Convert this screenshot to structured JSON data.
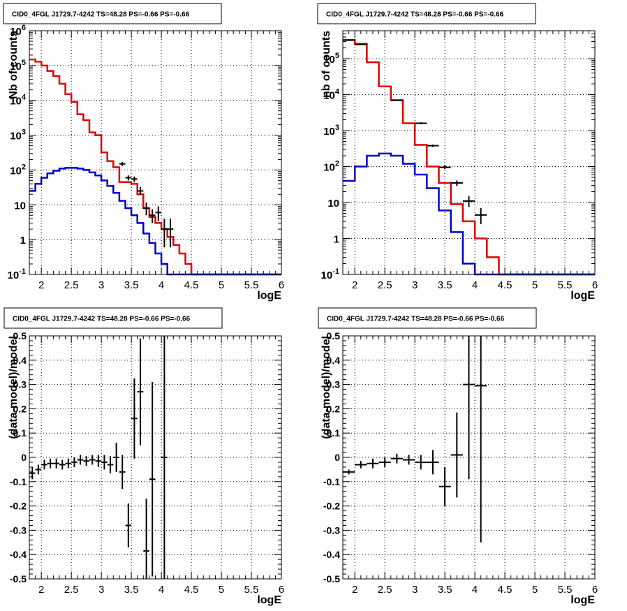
{
  "chart_data": [
    {
      "type": "line",
      "title": "CID0_4FGL J1729.7-4242 TS=48.28 PS=-0.66 PS=-0.66",
      "xlabel": "logE",
      "ylabel": "Nb of counts",
      "ylog": true,
      "xlim": [
        1.8,
        6.0
      ],
      "ylim": [
        0.1,
        1000000
      ],
      "xticks": [
        "2",
        "2.5",
        "3",
        "3.5",
        "4",
        "4.5",
        "5",
        "5.5",
        "6"
      ],
      "yticks": [
        {
          "v": 0.1,
          "label": "10",
          "exp": "-1"
        },
        {
          "v": 1,
          "label": "1"
        },
        {
          "v": 10,
          "label": "10"
        },
        {
          "v": 100,
          "label": "10",
          "exp": "2"
        },
        {
          "v": 1000,
          "label": "10",
          "exp": "3"
        },
        {
          "v": 10000,
          "label": "10",
          "exp": "4"
        },
        {
          "v": 100000,
          "label": "10",
          "exp": "5"
        },
        {
          "v": 1000000,
          "label": "10",
          "exp": "6"
        }
      ],
      "grid": true,
      "bin_edges": [
        1.8,
        1.9,
        2.0,
        2.1,
        2.2,
        2.3,
        2.4,
        2.5,
        2.6,
        2.7,
        2.8,
        2.9,
        3.0,
        3.1,
        3.2,
        3.3,
        3.4,
        3.5,
        3.6,
        3.7,
        3.8,
        3.9,
        4.0,
        4.1,
        4.2,
        4.3,
        4.4,
        4.5,
        4.6,
        4.7,
        4.8,
        4.9,
        5.0,
        5.1,
        5.2,
        5.3,
        5.4,
        5.5,
        5.6,
        5.7,
        5.8,
        5.9,
        6.0
      ],
      "series": [
        {
          "role": "total model",
          "color": "#e00000",
          "values": [
            150000,
            130000,
            100000,
            70000,
            50000,
            30000,
            15000,
            9000,
            4000,
            2700,
            1200,
            1000,
            320,
            180,
            120,
            45,
            45,
            40,
            20,
            8,
            4.5,
            3,
            2,
            1.2,
            0.7,
            0.4,
            0.2,
            0.1,
            0.08,
            0.08,
            0.08,
            0.08,
            0.08,
            0.08,
            0.08,
            0.08,
            0.08,
            0.08,
            0.08,
            0.08,
            0.08,
            0.08
          ]
        },
        {
          "role": "source model",
          "color": "#0000cc",
          "values": [
            25,
            40,
            60,
            80,
            95,
            110,
            115,
            115,
            110,
            100,
            85,
            70,
            50,
            35,
            22,
            13,
            8,
            5,
            3,
            1.5,
            0.8,
            0.4,
            0.2,
            0.1,
            0.08,
            0.08,
            0.08,
            0.08,
            0.08,
            0.08,
            0.08,
            0.08,
            0.08,
            0.08,
            0.08,
            0.08,
            0.08,
            0.08,
            0.08,
            0.08,
            0.08,
            0.08
          ]
        }
      ],
      "data_points": [
        {
          "x": 3.35,
          "y": 150,
          "ylo": 130,
          "yhi": 170
        },
        {
          "x": 3.45,
          "y": 60,
          "ylo": 50,
          "yhi": 70
        },
        {
          "x": 3.55,
          "y": 55,
          "ylo": 45,
          "yhi": 65
        },
        {
          "x": 3.65,
          "y": 25,
          "ylo": 19,
          "yhi": 32
        },
        {
          "x": 3.75,
          "y": 8,
          "ylo": 5,
          "yhi": 11.5
        },
        {
          "x": 3.85,
          "y": 5,
          "ylo": 3,
          "yhi": 7.5
        },
        {
          "x": 3.95,
          "y": 6,
          "ylo": 3.5,
          "yhi": 9
        },
        {
          "x": 4.05,
          "y": 2,
          "ylo": 0.6,
          "yhi": 4
        },
        {
          "x": 4.15,
          "y": 2,
          "ylo": 0.6,
          "yhi": 4
        }
      ]
    },
    {
      "type": "line",
      "title": "CID0_4FGL J1729.7-4242 TS=48.28 PS=-0.66 PS=-0.66",
      "xlabel": "logE",
      "ylabel": "nb of counts",
      "ylog": true,
      "xlim": [
        1.8,
        6.0
      ],
      "ylim": [
        0.1,
        600000
      ],
      "xticks": [
        "2",
        "2.5",
        "3",
        "3.5",
        "4",
        "4.5",
        "5",
        "5.5",
        "6"
      ],
      "yticks": [
        {
          "v": 0.1,
          "label": "10",
          "exp": "-1"
        },
        {
          "v": 1,
          "label": "1"
        },
        {
          "v": 10,
          "label": "10"
        },
        {
          "v": 100,
          "label": "10",
          "exp": "2"
        },
        {
          "v": 1000,
          "label": "10",
          "exp": "3"
        },
        {
          "v": 10000,
          "label": "10",
          "exp": "4"
        },
        {
          "v": 100000,
          "label": "10",
          "exp": "5"
        }
      ],
      "grid": true,
      "bin_edges": [
        1.8,
        2.0,
        2.2,
        2.4,
        2.6,
        2.8,
        3.0,
        3.2,
        3.4,
        3.6,
        3.8,
        4.0,
        4.2,
        4.4,
        4.6,
        4.8,
        5.0,
        5.2,
        5.4,
        5.6,
        5.8,
        6.0
      ],
      "series": [
        {
          "role": "total model",
          "color": "#e00000",
          "values": [
            330000,
            260000,
            80000,
            17000,
            7000,
            1600,
            400,
            100,
            35,
            9,
            3,
            1,
            0.3,
            0.1,
            0.08,
            0.08,
            0.08,
            0.08,
            0.08,
            0.08,
            0.08
          ]
        },
        {
          "role": "source model",
          "color": "#0000cc",
          "values": [
            40,
            100,
            200,
            230,
            200,
            120,
            60,
            25,
            6,
            1.5,
            0.2,
            0.08,
            0.08,
            0.08,
            0.08,
            0.08,
            0.08,
            0.08,
            0.08,
            0.08,
            0.08
          ]
        }
      ],
      "data_points": [
        {
          "x": 1.9,
          "y": 330000,
          "ylo": 320000,
          "yhi": 340000
        },
        {
          "x": 2.1,
          "y": 250000,
          "ylo": 240000,
          "yhi": 260000
        },
        {
          "x": 2.7,
          "y": 7000,
          "ylo": 6700,
          "yhi": 7300
        },
        {
          "x": 3.1,
          "y": 1600,
          "ylo": 1500,
          "yhi": 1700
        },
        {
          "x": 3.3,
          "y": 380,
          "ylo": 350,
          "yhi": 410
        },
        {
          "x": 3.5,
          "y": 95,
          "ylo": 85,
          "yhi": 110
        },
        {
          "x": 3.7,
          "y": 35,
          "ylo": 29,
          "yhi": 41
        },
        {
          "x": 3.9,
          "y": 11,
          "ylo": 7.5,
          "yhi": 15
        },
        {
          "x": 4.1,
          "y": 4.5,
          "ylo": 2.5,
          "yhi": 7
        }
      ]
    },
    {
      "type": "scatter",
      "title": "CID0_4FGL J1729.7-4242 TS=48.28 PS=-0.66 PS=-0.66",
      "xlabel": "logE",
      "ylabel": "(data-model)/model",
      "xlim": [
        1.8,
        6.0
      ],
      "ylim": [
        -0.5,
        0.5
      ],
      "xticks": [
        "2",
        "2.5",
        "3",
        "3.5",
        "4",
        "4.5",
        "5",
        "5.5",
        "6"
      ],
      "yticks": [
        "-0.5",
        "-0.4",
        "-0.3",
        "-0.2",
        "-0.1",
        "0",
        "0.1",
        "0.2",
        "0.3",
        "0.4",
        "0.5"
      ],
      "grid": true,
      "xhalf": 0.05,
      "points": [
        {
          "x": 1.85,
          "y": -0.065,
          "yerr": 0.025
        },
        {
          "x": 1.95,
          "y": -0.05,
          "yerr": 0.02
        },
        {
          "x": 2.05,
          "y": -0.03,
          "yerr": 0.02
        },
        {
          "x": 2.15,
          "y": -0.025,
          "yerr": 0.02
        },
        {
          "x": 2.25,
          "y": -0.025,
          "yerr": 0.02
        },
        {
          "x": 2.35,
          "y": -0.03,
          "yerr": 0.02
        },
        {
          "x": 2.45,
          "y": -0.025,
          "yerr": 0.02
        },
        {
          "x": 2.55,
          "y": -0.02,
          "yerr": 0.02
        },
        {
          "x": 2.65,
          "y": -0.01,
          "yerr": 0.02
        },
        {
          "x": 2.75,
          "y": -0.015,
          "yerr": 0.02
        },
        {
          "x": 2.85,
          "y": -0.01,
          "yerr": 0.02
        },
        {
          "x": 2.95,
          "y": -0.015,
          "yerr": 0.025
        },
        {
          "x": 3.05,
          "y": -0.02,
          "yerr": 0.03
        },
        {
          "x": 3.15,
          "y": -0.03,
          "yerr": 0.035
        },
        {
          "x": 3.25,
          "y": 0.0,
          "yerr": 0.06
        },
        {
          "x": 3.35,
          "y": -0.06,
          "yerr": 0.07
        },
        {
          "x": 3.45,
          "y": -0.28,
          "yerr": 0.09
        },
        {
          "x": 3.55,
          "y": 0.16,
          "yerr": 0.165
        },
        {
          "x": 3.65,
          "y": 0.27,
          "yerr": 0.22
        },
        {
          "x": 3.75,
          "y": -0.385,
          "yerr": 0.215
        },
        {
          "x": 3.85,
          "y": -0.09,
          "yerr": 0.4
        },
        {
          "x": 4.05,
          "y": 0.0,
          "yerr": 0.5
        }
      ]
    },
    {
      "type": "scatter",
      "title": "CID0_4FGL J1729.7-4242 TS=48.28 PS=-0.66 PS=-0.66",
      "xlabel": "logE",
      "ylabel": "(data-model)/model",
      "xlim": [
        1.8,
        6.0
      ],
      "ylim": [
        -0.5,
        0.5
      ],
      "xticks": [
        "2",
        "2.5",
        "3",
        "3.5",
        "4",
        "4.5",
        "5",
        "5.5",
        "6"
      ],
      "yticks": [
        "-0.5",
        "-0.4",
        "-0.3",
        "-0.2",
        "-0.1",
        "0",
        "0.1",
        "0.2",
        "0.3",
        "0.4",
        "0.5"
      ],
      "grid": true,
      "xhalf": 0.1,
      "points": [
        {
          "x": 1.9,
          "y": -0.06,
          "yerr": 0.01
        },
        {
          "x": 2.1,
          "y": -0.03,
          "yerr": 0.015
        },
        {
          "x": 2.3,
          "y": -0.025,
          "yerr": 0.02
        },
        {
          "x": 2.5,
          "y": -0.02,
          "yerr": 0.02
        },
        {
          "x": 2.7,
          "y": -0.005,
          "yerr": 0.02
        },
        {
          "x": 2.9,
          "y": -0.01,
          "yerr": 0.02
        },
        {
          "x": 3.1,
          "y": -0.02,
          "yerr": 0.03
        },
        {
          "x": 3.3,
          "y": -0.02,
          "yerr": 0.05
        },
        {
          "x": 3.5,
          "y": -0.12,
          "yerr": 0.08
        },
        {
          "x": 3.7,
          "y": 0.01,
          "yerr": 0.175
        },
        {
          "x": 3.9,
          "y": 0.3,
          "yerr": 0.39
        },
        {
          "x": 4.1,
          "y": 0.295,
          "yerr": 0.645
        }
      ]
    }
  ]
}
